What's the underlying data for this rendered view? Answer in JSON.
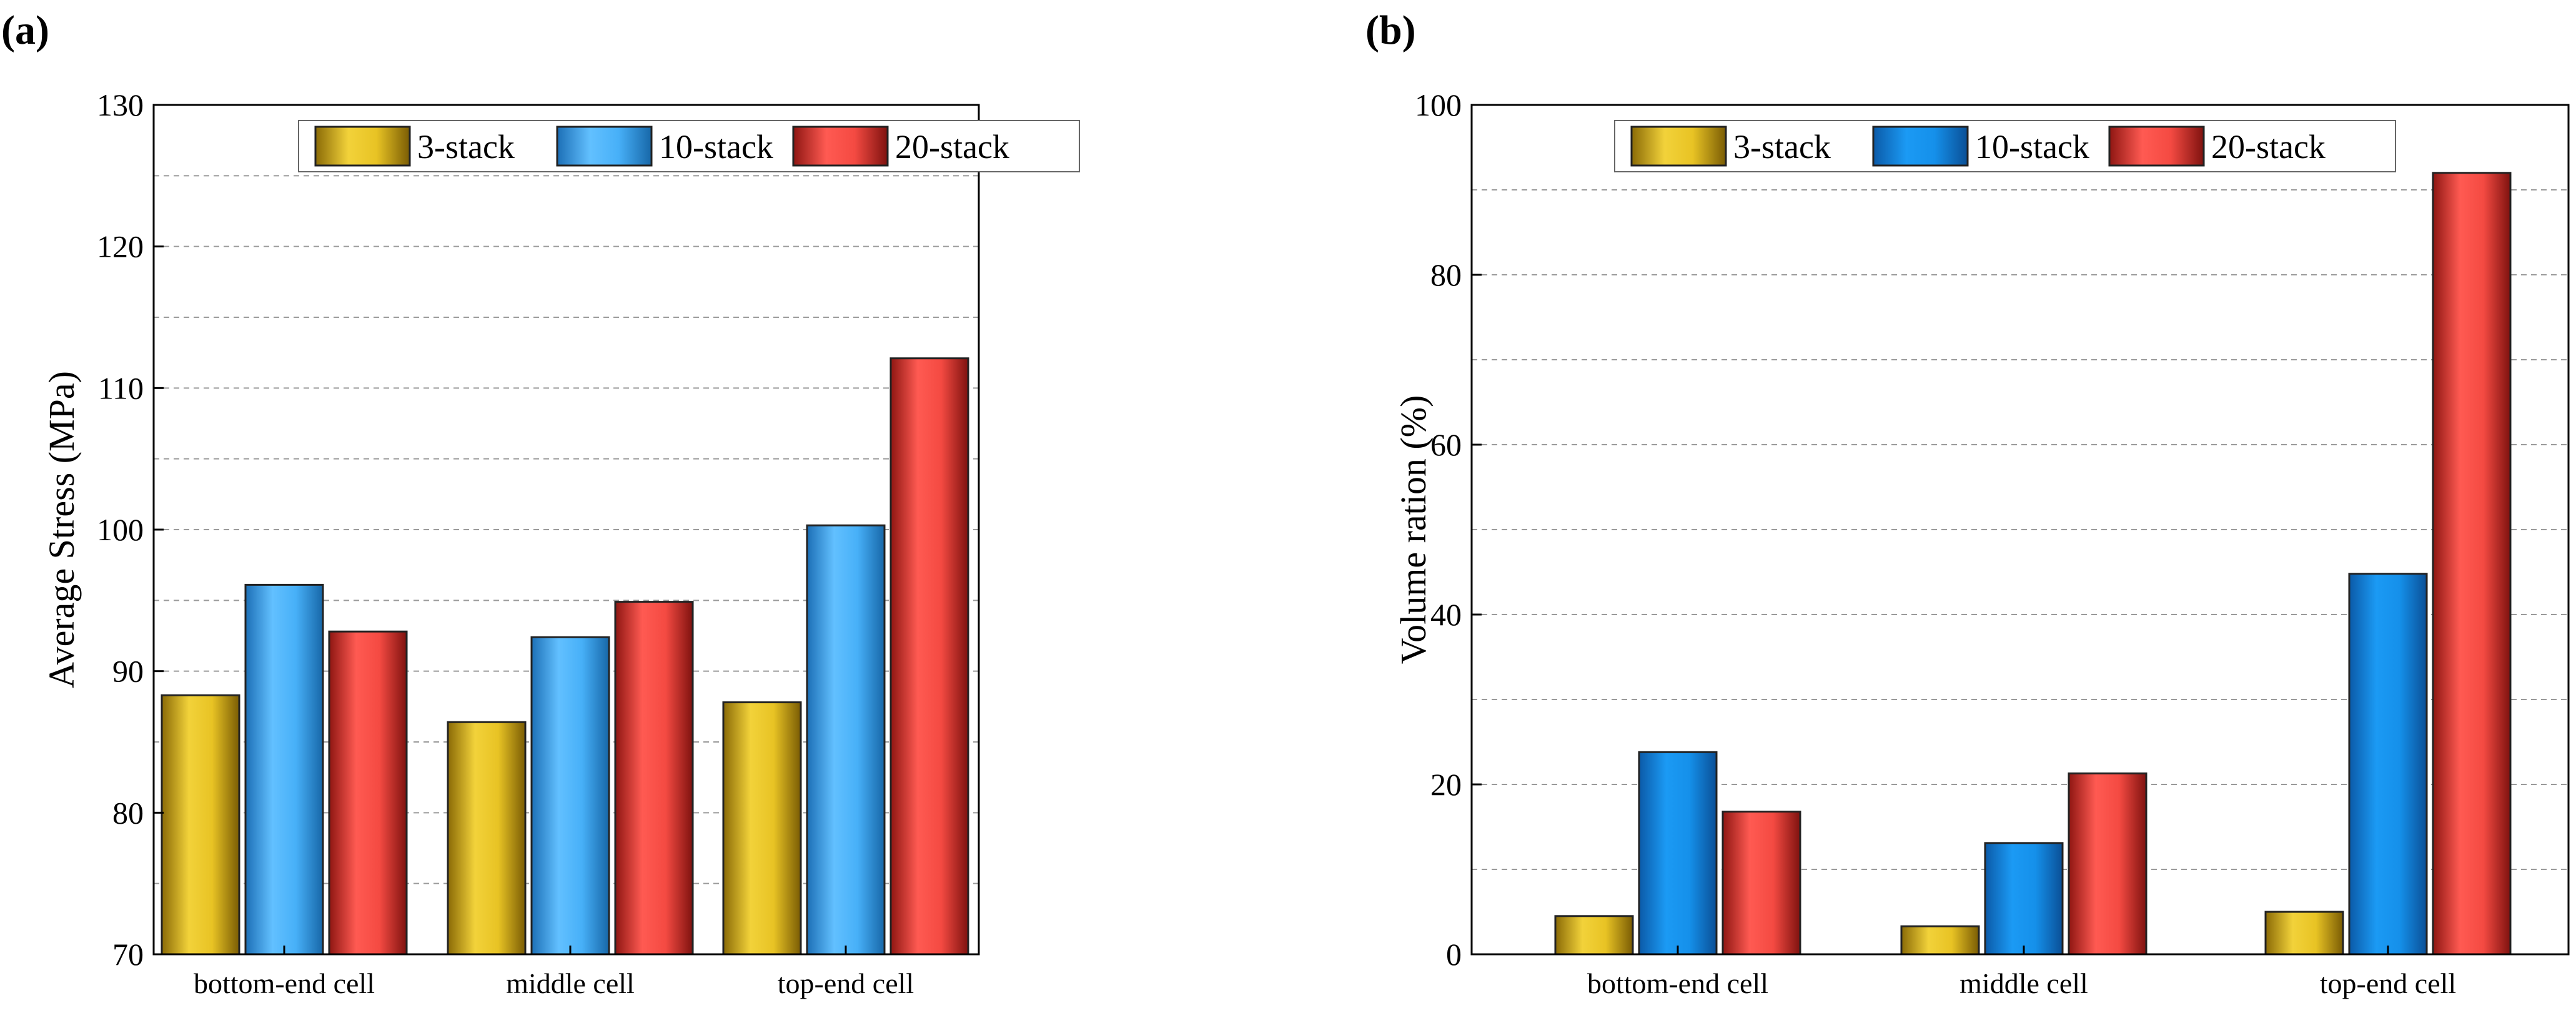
{
  "colors": {
    "3-stack": "#d4b21c",
    "10-stack-a": "#3fa8ee",
    "10-stack-b": "#1a8be6",
    "20-stack": "#e8453e"
  },
  "chart_data": [
    {
      "panel_label": "(a)",
      "type": "bar",
      "categories": [
        "bottom-end cell",
        "middle cell",
        "top-end cell"
      ],
      "series": [
        {
          "name": "3-stack",
          "values": [
            88.3,
            86.4,
            87.8
          ]
        },
        {
          "name": "10-stack",
          "values": [
            96.1,
            92.4,
            100.3
          ]
        },
        {
          "name": "20-stack",
          "values": [
            92.8,
            94.9,
            112.1
          ]
        }
      ],
      "ylabel": "Average Stress (MPa)",
      "xlabel": "",
      "ylim": [
        70,
        130
      ],
      "yticks": [
        70,
        80,
        90,
        100,
        110,
        120,
        130
      ],
      "gridlines": [
        75,
        80,
        85,
        90,
        95,
        100,
        105,
        110,
        115,
        120,
        125
      ],
      "legend_position": "top-center"
    },
    {
      "panel_label": "(b)",
      "type": "bar",
      "categories": [
        "bottom-end cell",
        "middle cell",
        "top-end cell"
      ],
      "series": [
        {
          "name": "3-stack",
          "values": [
            4.5,
            3.3,
            5.0
          ]
        },
        {
          "name": "10-stack",
          "values": [
            23.8,
            13.1,
            44.8
          ]
        },
        {
          "name": "20-stack",
          "values": [
            16.8,
            21.3,
            92.0
          ]
        }
      ],
      "ylabel": "Volume ration (%)",
      "xlabel": "",
      "ylim": [
        0,
        100
      ],
      "yticks": [
        0,
        20,
        40,
        60,
        80,
        100
      ],
      "gridlines": [
        10,
        20,
        30,
        40,
        50,
        60,
        70,
        80,
        90
      ],
      "legend_position": "top-center"
    }
  ]
}
